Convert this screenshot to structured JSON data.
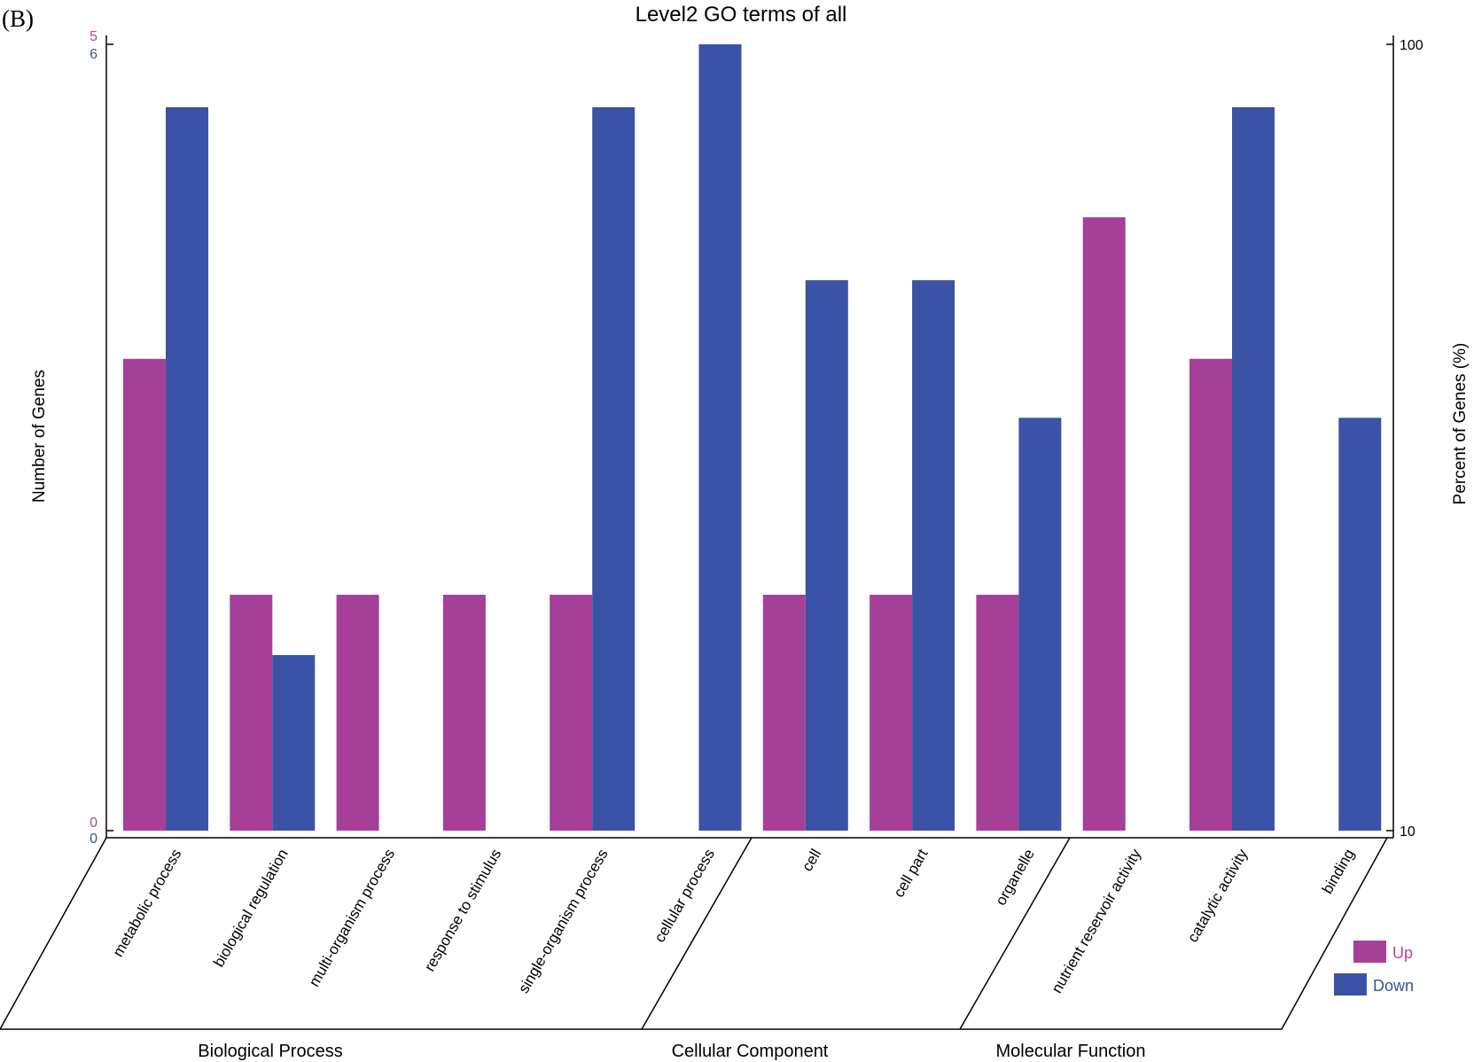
{
  "panel_label": "(B)",
  "chart_data": {
    "type": "bar",
    "title": "Level2 GO terms of all",
    "ylabel": "Number of Genes",
    "y2label": "Percent of Genes (%)",
    "categories": [
      "metabolic process",
      "biological regulation",
      "multi-organism process",
      "response to stimulus",
      "single-organism process",
      "cellular process",
      "cell",
      "cell part",
      "organelle",
      "nutrient reservoir activity",
      "catalytic activity",
      "binding"
    ],
    "groups": [
      {
        "label": "Biological Process",
        "count": 5
      },
      {
        "label": "Cellular Component",
        "count": 3
      },
      {
        "label": "Molecular Function",
        "count": 4
      }
    ],
    "series": [
      {
        "name": "Up",
        "color": "#a63f98",
        "axis_max": 5,
        "values": [
          3,
          1.5,
          1.5,
          1.5,
          1.5,
          0,
          1.5,
          1.5,
          1.5,
          3.9,
          3,
          0
        ]
      },
      {
        "name": "Down",
        "color": "#3a53a6",
        "axis_max": 6,
        "values": [
          5.52,
          1.34,
          0,
          0,
          5.52,
          6,
          4.2,
          4.2,
          3.15,
          0,
          5.52,
          3.15
        ]
      }
    ],
    "left_axis_up": {
      "min_label": "0",
      "max_label": "5",
      "color": "#b0469f"
    },
    "left_axis_down": {
      "min_label": "0",
      "max_label": "6",
      "color": "#3a4fa0"
    },
    "right_axis": {
      "min_label": "10",
      "max_label": "100"
    },
    "legend": {
      "position": "bottom-right"
    },
    "grid": false
  }
}
